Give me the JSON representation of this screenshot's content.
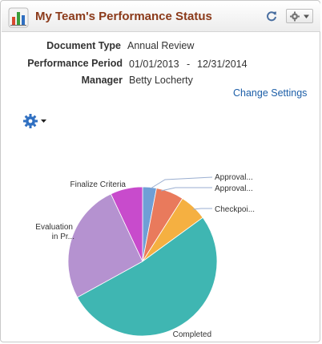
{
  "header": {
    "title": "My Team's Performance Status",
    "icon": "bar-chart-icon",
    "refresh_icon": "refresh-icon",
    "options_icon": "gear-dropdown-icon"
  },
  "details": {
    "document_type_label": "Document Type",
    "document_type_value": "Annual Review",
    "period_label": "Performance Period",
    "period_start": "01/01/2013",
    "period_separator": "-",
    "period_end": "12/31/2014",
    "manager_label": "Manager",
    "manager_value": "Betty Locherty"
  },
  "change_settings": "Change Settings",
  "chart_options_icon": "gear-dropdown-icon",
  "chart_data": {
    "type": "pie",
    "title": "",
    "slices": [
      {
        "label": "Approval...",
        "value": 3,
        "color": "#6f9fd6"
      },
      {
        "label": "Approval...",
        "value": 6,
        "color": "#e97a5c"
      },
      {
        "label": "Checkpoi...",
        "value": 6,
        "color": "#f5b041"
      },
      {
        "label": "Completed",
        "value": 52,
        "color": "#3fb6b2"
      },
      {
        "label": "Evaluation in Pr...",
        "value": 26,
        "color": "#b592d0"
      },
      {
        "label": "Finalize Criteria",
        "value": 7,
        "color": "#c84bcc"
      }
    ]
  }
}
